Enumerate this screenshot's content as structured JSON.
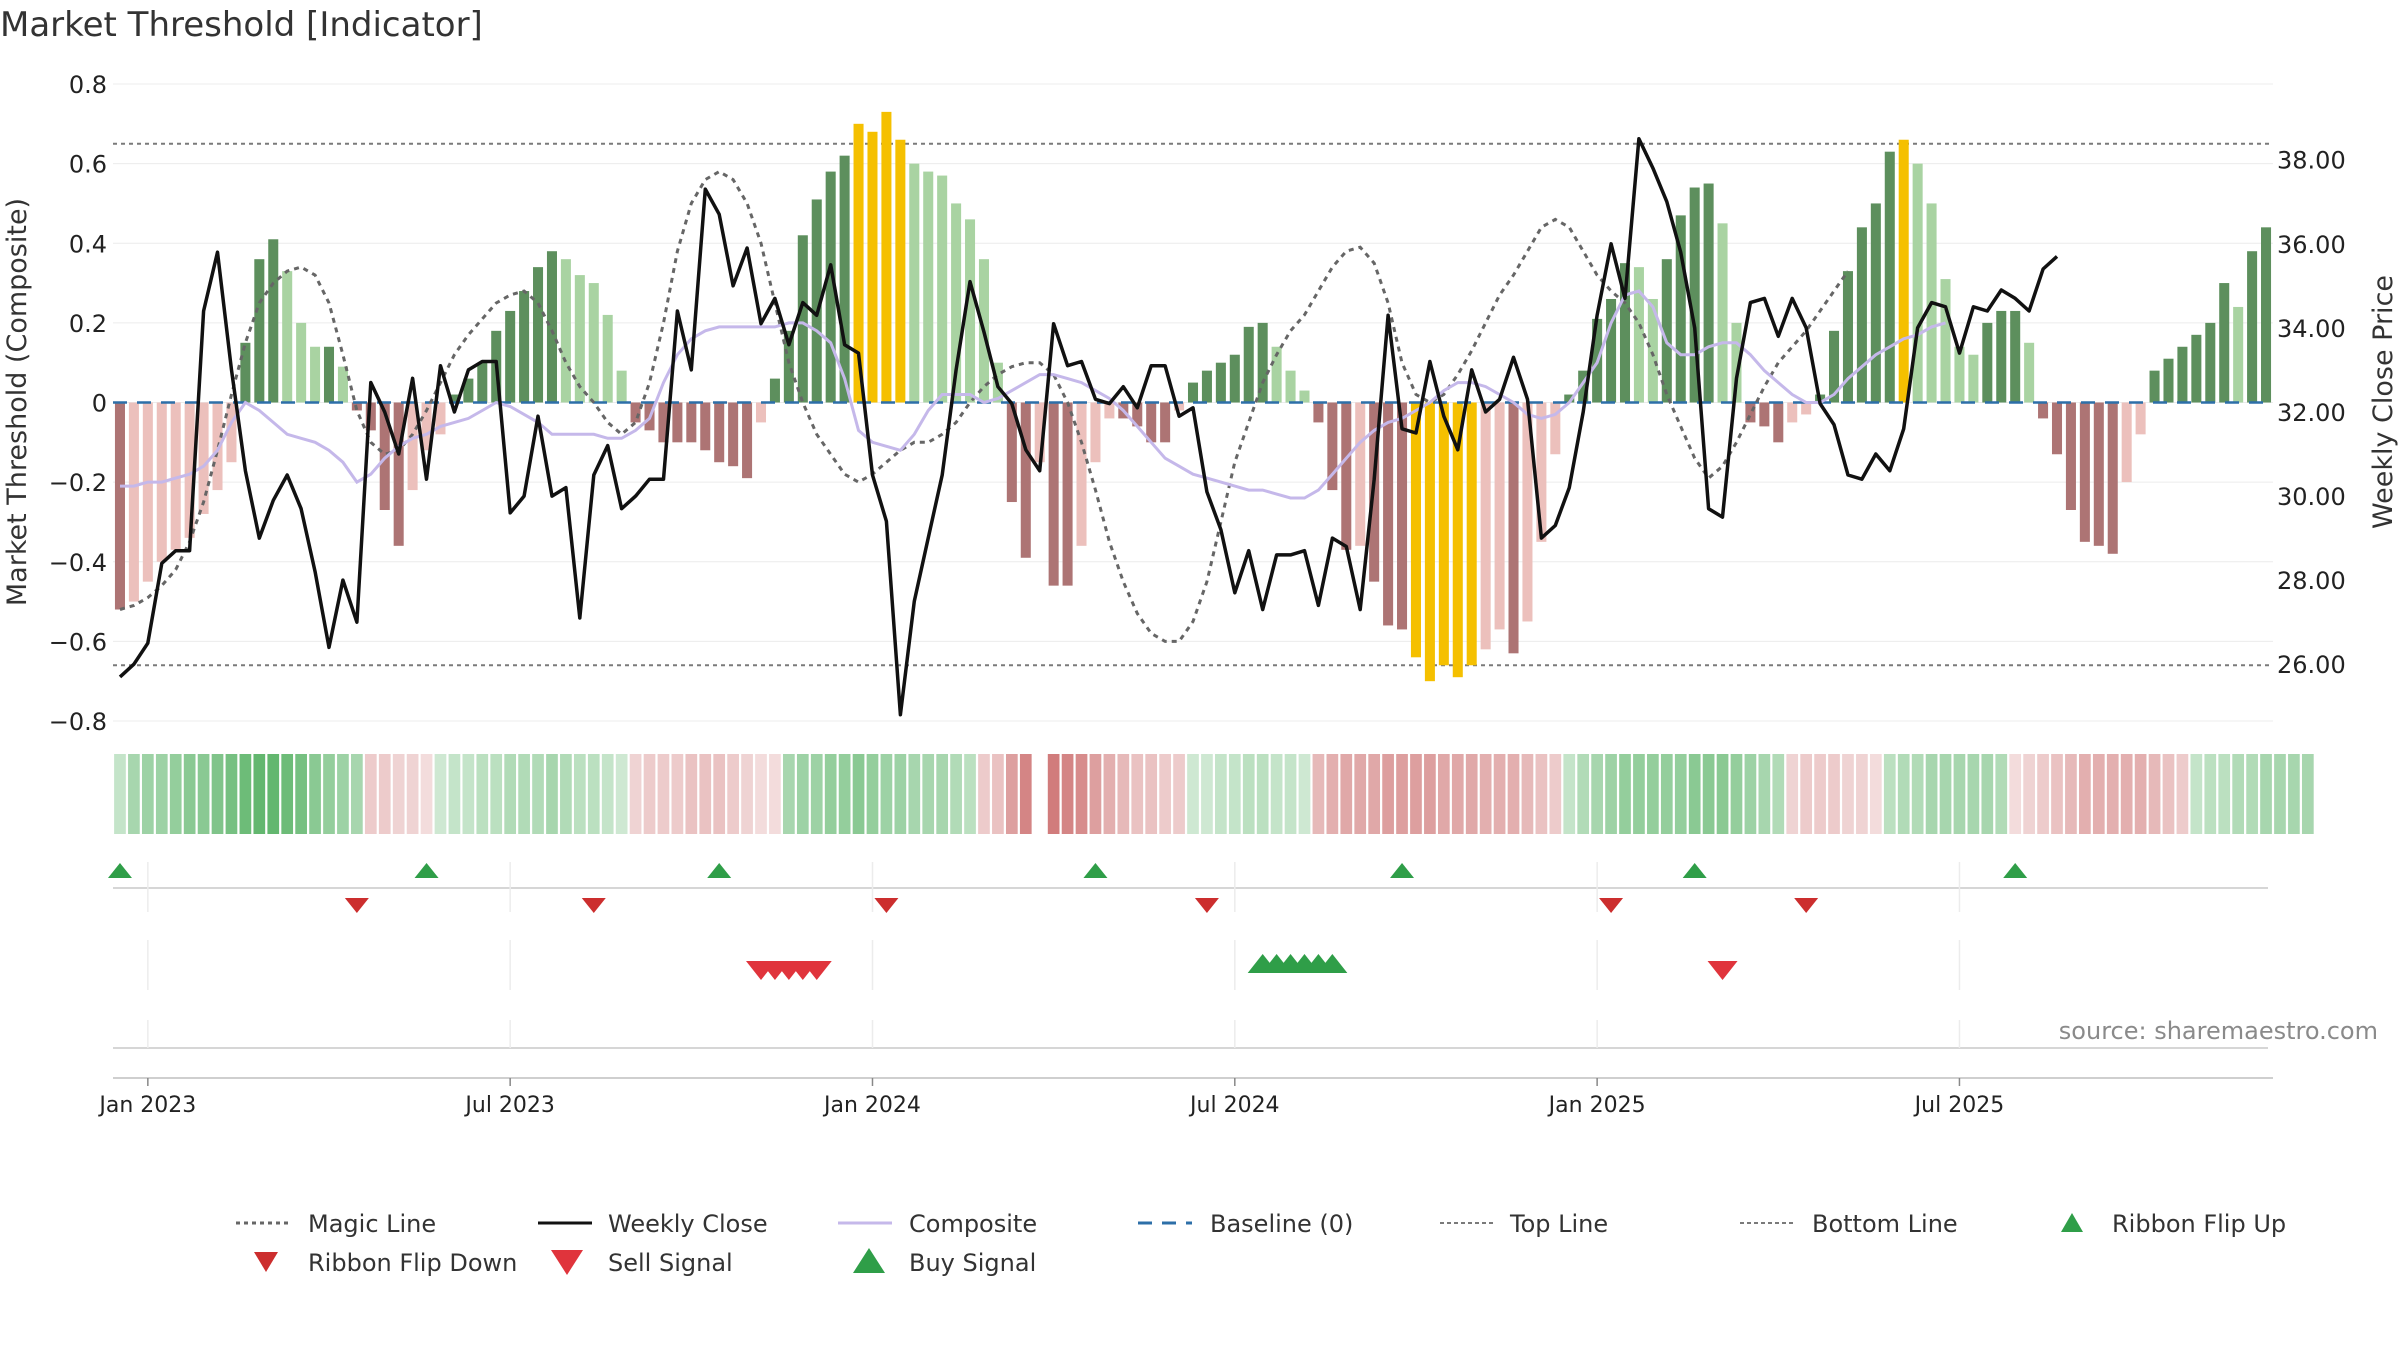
{
  "chart_data": {
    "type": "bar",
    "title": "Market Threshold [Indicator]",
    "ylabel_left": "Market Threshold (Composite)",
    "ylabel_right": "Weekly Close Price",
    "source": "source: sharemaestro.com",
    "ylim_left": [
      -0.8,
      0.8
    ],
    "ylim_right": [
      24.65,
      39.8
    ],
    "yticks_left": [
      "0.8",
      "0.6",
      "0.4",
      "0.2",
      "0",
      "−0.2",
      "−0.4",
      "−0.6",
      "−0.8"
    ],
    "yticks_left_values": [
      0.8,
      0.6,
      0.4,
      0.2,
      0,
      -0.2,
      -0.4,
      -0.6,
      -0.8
    ],
    "yticks_right": [
      "38.00",
      "36.00",
      "34.00",
      "32.00",
      "30.00",
      "28.00",
      "26.00"
    ],
    "yticks_right_values": [
      38,
      36,
      34,
      32,
      30,
      28,
      26
    ],
    "xticks": [
      "Jan 2023",
      "Jul 2023",
      "Jan 2024",
      "Jul 2024",
      "Jan 2025",
      "Jul 2025"
    ],
    "xticks_week_index": [
      2.5,
      28.5,
      54.5,
      80.5,
      106.5,
      132.5
    ],
    "top_line": 0.65,
    "bottom_line": -0.66,
    "baseline": 0,
    "composite_bars": [
      -0.52,
      -0.5,
      -0.45,
      -0.4,
      -0.37,
      -0.34,
      -0.28,
      -0.22,
      -0.15,
      0.15,
      0.36,
      0.41,
      0.33,
      0.2,
      0.14,
      0.14,
      0.09,
      -0.02,
      -0.07,
      -0.27,
      -0.36,
      -0.22,
      -0.12,
      -0.08,
      0.02,
      0.06,
      0.1,
      0.18,
      0.23,
      0.28,
      0.34,
      0.38,
      0.36,
      0.32,
      0.3,
      0.22,
      0.08,
      -0.05,
      -0.07,
      -0.1,
      -0.1,
      -0.1,
      -0.12,
      -0.15,
      -0.16,
      -0.19,
      -0.05,
      0.06,
      0.18,
      0.42,
      0.51,
      0.58,
      0.62,
      0.7,
      0.68,
      0.73,
      0.66,
      0.6,
      0.58,
      0.57,
      0.5,
      0.46,
      0.36,
      0.1,
      -0.25,
      -0.39,
      -0.15,
      -0.46,
      -0.46,
      -0.36,
      -0.15,
      -0.04,
      -0.04,
      -0.06,
      -0.1,
      -0.1,
      -0.02,
      0.05,
      0.08,
      0.1,
      0.12,
      0.19,
      0.2,
      0.14,
      0.08,
      0.03,
      -0.05,
      -0.22,
      -0.37,
      -0.36,
      -0.45,
      -0.56,
      -0.57,
      -0.64,
      -0.7,
      -0.66,
      -0.69,
      -0.66,
      -0.62,
      -0.57,
      -0.63,
      -0.55,
      -0.35,
      -0.13,
      0.02,
      0.08,
      0.21,
      0.26,
      0.35,
      0.34,
      0.26,
      0.36,
      0.47,
      0.54,
      0.55,
      0.45,
      0.2,
      -0.05,
      -0.06,
      -0.1,
      -0.05,
      -0.03,
      0.02,
      0.18,
      0.33,
      0.44,
      0.5,
      0.63,
      0.66,
      0.6,
      0.5,
      0.31,
      0.14,
      0.12,
      0.2,
      0.23,
      0.23,
      0.15,
      -0.04,
      -0.13,
      -0.27,
      -0.35,
      -0.36,
      -0.38,
      -0.2,
      -0.08,
      0.08,
      0.11,
      0.14,
      0.17,
      0.2,
      0.3,
      0.24,
      0.38,
      0.44
    ],
    "weekly_close": [
      25.7,
      26.0,
      26.5,
      28.4,
      28.7,
      28.7,
      34.4,
      35.8,
      33.0,
      30.6,
      29.0,
      29.9,
      30.5,
      29.7,
      28.2,
      26.4,
      28.0,
      27.0,
      32.7,
      32.0,
      31.0,
      32.8,
      30.4,
      33.1,
      32.0,
      33.0,
      33.2,
      33.2,
      29.6,
      30.0,
      31.9,
      30.0,
      30.2,
      27.1,
      30.5,
      31.2,
      29.7,
      30.0,
      30.4,
      30.4,
      34.4,
      33.0,
      37.3,
      36.7,
      35.0,
      35.9,
      34.1,
      34.7,
      33.6,
      34.6,
      34.3,
      35.5,
      33.6,
      33.4,
      30.5,
      29.4,
      24.8,
      27.5,
      29.0,
      30.5,
      33.0,
      35.1,
      33.9,
      32.6,
      32.2,
      31.1,
      30.6,
      34.1,
      33.1,
      33.2,
      32.3,
      32.2,
      32.6,
      32.1,
      33.1,
      33.1,
      31.9,
      32.1,
      30.1,
      29.2,
      27.7,
      28.7,
      27.3,
      28.6,
      28.6,
      28.7,
      27.4,
      29.0,
      28.8,
      27.3,
      30.4,
      34.3,
      31.6,
      31.5,
      33.2,
      31.9,
      31.1,
      33.0,
      32.0,
      32.3,
      33.3,
      32.3,
      29.0,
      29.3,
      30.2,
      32.0,
      34.3,
      36.0,
      34.7,
      38.5,
      37.8,
      37.0,
      35.8,
      34.0,
      29.7,
      29.5,
      32.8,
      34.6,
      34.7,
      33.8,
      34.7,
      34.0,
      32.2,
      31.7,
      30.5,
      30.4,
      31.0,
      30.6,
      31.6,
      34.0,
      34.6,
      34.5,
      33.4,
      34.5,
      34.4,
      34.9,
      34.7,
      34.4,
      35.4,
      35.7
    ],
    "magic_line": [
      -0.52,
      -0.51,
      -0.49,
      -0.46,
      -0.42,
      -0.35,
      -0.25,
      -0.12,
      0.02,
      0.15,
      0.25,
      0.3,
      0.33,
      0.34,
      0.32,
      0.25,
      0.12,
      -0.02,
      -0.1,
      -0.13,
      -0.12,
      -0.08,
      -0.02,
      0.05,
      0.12,
      0.17,
      0.21,
      0.25,
      0.27,
      0.28,
      0.25,
      0.18,
      0.1,
      0.04,
      0.0,
      -0.05,
      -0.08,
      -0.05,
      0.05,
      0.2,
      0.38,
      0.5,
      0.56,
      0.58,
      0.56,
      0.5,
      0.4,
      0.25,
      0.1,
      0.0,
      -0.08,
      -0.13,
      -0.18,
      -0.2,
      -0.18,
      -0.15,
      -0.12,
      -0.1,
      -0.1,
      -0.08,
      -0.05,
      0.0,
      0.04,
      0.07,
      0.09,
      0.1,
      0.1,
      0.07,
      0.0,
      -0.1,
      -0.22,
      -0.35,
      -0.45,
      -0.53,
      -0.58,
      -0.6,
      -0.6,
      -0.55,
      -0.45,
      -0.3,
      -0.15,
      -0.05,
      0.05,
      0.12,
      0.18,
      0.22,
      0.28,
      0.34,
      0.38,
      0.39,
      0.35,
      0.25,
      0.1,
      0.02,
      0.0,
      0.02,
      0.07,
      0.13,
      0.2,
      0.27,
      0.32,
      0.38,
      0.44,
      0.46,
      0.44,
      0.38,
      0.32,
      0.28,
      0.25,
      0.2,
      0.12,
      0.02,
      -0.06,
      -0.14,
      -0.19,
      -0.16,
      -0.1,
      -0.03,
      0.04,
      0.1,
      0.14,
      0.18,
      0.23,
      0.28,
      0.33
    ],
    "magic_line_start_index": 0,
    "composite_line": [
      -0.21,
      -0.21,
      -0.2,
      -0.2,
      -0.19,
      -0.18,
      -0.16,
      -0.12,
      -0.05,
      0.0,
      -0.02,
      -0.05,
      -0.08,
      -0.09,
      -0.1,
      -0.12,
      -0.15,
      -0.2,
      -0.18,
      -0.14,
      -0.11,
      -0.09,
      -0.08,
      -0.06,
      -0.05,
      -0.04,
      -0.02,
      0.0,
      -0.01,
      -0.03,
      -0.05,
      -0.08,
      -0.08,
      -0.08,
      -0.08,
      -0.09,
      -0.09,
      -0.07,
      -0.04,
      0.05,
      0.12,
      0.16,
      0.18,
      0.19,
      0.19,
      0.19,
      0.19,
      0.19,
      0.2,
      0.2,
      0.18,
      0.15,
      0.06,
      -0.07,
      -0.1,
      -0.11,
      -0.12,
      -0.08,
      -0.02,
      0.02,
      0.02,
      0.02,
      0.0,
      0.01,
      0.03,
      0.05,
      0.07,
      0.07,
      0.06,
      0.05,
      0.03,
      0.01,
      -0.02,
      -0.06,
      -0.1,
      -0.14,
      -0.16,
      -0.18,
      -0.19,
      -0.2,
      -0.21,
      -0.22,
      -0.22,
      -0.23,
      -0.24,
      -0.24,
      -0.22,
      -0.18,
      -0.14,
      -0.1,
      -0.07,
      -0.05,
      -0.04,
      -0.02,
      0.0,
      0.03,
      0.05,
      0.05,
      0.04,
      0.02,
      0.0,
      -0.03,
      -0.04,
      -0.03,
      0.0,
      0.05,
      0.1,
      0.2,
      0.27,
      0.28,
      0.24,
      0.15,
      0.12,
      0.12,
      0.14,
      0.15,
      0.15,
      0.12,
      0.08,
      0.05,
      0.02,
      0.0,
      0.0,
      0.02,
      0.06,
      0.09,
      0.12,
      0.14,
      0.16,
      0.17,
      0.19,
      0.2
    ],
    "ribbon_strength": [
      0.3,
      0.45,
      0.5,
      0.5,
      0.55,
      0.6,
      0.6,
      0.65,
      0.7,
      0.75,
      0.8,
      0.8,
      0.75,
      0.7,
      0.6,
      0.55,
      0.5,
      0.45,
      -0.3,
      -0.3,
      -0.25,
      -0.25,
      -0.2,
      0.25,
      0.3,
      0.3,
      0.35,
      0.35,
      0.4,
      0.4,
      0.4,
      0.45,
      0.4,
      0.35,
      0.35,
      0.3,
      0.25,
      -0.25,
      -0.3,
      -0.3,
      -0.3,
      -0.35,
      -0.35,
      -0.35,
      -0.3,
      -0.25,
      -0.2,
      -0.2,
      0.45,
      0.5,
      0.5,
      0.55,
      0.55,
      0.6,
      0.55,
      0.5,
      0.5,
      0.45,
      0.45,
      0.45,
      0.4,
      0.35,
      -0.3,
      -0.35,
      -0.55,
      -0.7,
      0,
      -0.75,
      -0.7,
      -0.65,
      -0.55,
      -0.45,
      -0.4,
      -0.35,
      -0.35,
      -0.3,
      -0.3,
      0.25,
      0.25,
      0.3,
      0.3,
      0.35,
      0.35,
      0.3,
      0.3,
      0.25,
      -0.4,
      -0.45,
      -0.5,
      -0.5,
      -0.5,
      -0.55,
      -0.55,
      -0.55,
      -0.55,
      -0.5,
      -0.5,
      -0.5,
      -0.45,
      -0.45,
      -0.45,
      -0.4,
      -0.35,
      -0.3,
      0.3,
      0.4,
      0.45,
      0.5,
      0.55,
      0.55,
      0.55,
      0.55,
      0.55,
      0.6,
      0.6,
      0.6,
      0.55,
      0.5,
      0.45,
      0.4,
      -0.25,
      -0.3,
      -0.3,
      -0.3,
      -0.25,
      -0.25,
      -0.2,
      0.35,
      0.4,
      0.4,
      0.45,
      0.45,
      0.45,
      0.45,
      0.45,
      0.4,
      -0.2,
      -0.25,
      -0.3,
      -0.35,
      -0.4,
      -0.45,
      -0.45,
      -0.45,
      -0.45,
      -0.45,
      -0.4,
      -0.35,
      -0.3,
      0.3,
      0.35,
      0.35,
      0.4,
      0.4,
      0.45,
      0.45,
      0.45,
      0.45
    ],
    "ribbon_flip_up_weeks": [
      0.5,
      22.5,
      43.5,
      70.5,
      92.5,
      113.5,
      136.5
    ],
    "ribbon_flip_down_weeks": [
      17.5,
      34.5,
      55.5,
      78.5,
      107.5,
      121.5
    ],
    "sell_signal_weeks": [
      46.5,
      47.5,
      48.5,
      49.5,
      50.5,
      115.5
    ],
    "buy_signal_weeks": [
      82.5,
      83.5,
      84.5,
      85.5,
      86.5,
      87.5
    ],
    "legend": [
      "Magic Line",
      "Weekly Close",
      "Composite",
      "Baseline (0)",
      "Top Line",
      "Bottom Line",
      "Ribbon Flip Up",
      "Ribbon Flip Down",
      "Sell Signal",
      "Buy Signal"
    ],
    "colors": {
      "bull_strong": "#5d8f5d",
      "bull_weak": "#a9d3a2",
      "bear_strong": "#ad7474",
      "bear_weak": "#ecc0bc",
      "extreme": "#f5c000",
      "weekly_close": "#111111",
      "composite": "#c5b8ea",
      "magic_line": "#666666",
      "baseline": "#2d6fa8",
      "threshold": "#7a7a7a",
      "ribbon_up": "#2f9e48",
      "ribbon_down": "#cc2e2e",
      "sell_signal": "#e0343c",
      "buy_signal": "#2f9e48"
    }
  }
}
